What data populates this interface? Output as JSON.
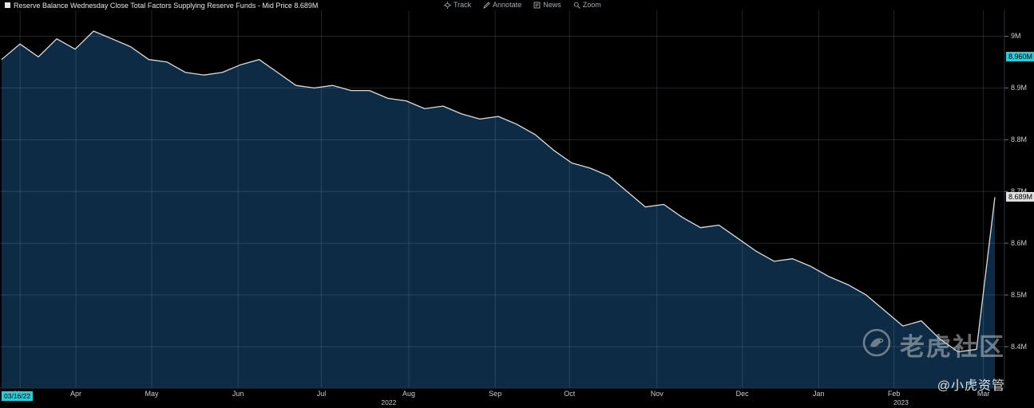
{
  "header": {
    "title": "Reserve Balance Wednesday Close Total Factors Supplying Reserve Funds - Mid Price 8.689M",
    "legend_color": "#e6e6e6",
    "toolbar": [
      {
        "label": "Track"
      },
      {
        "label": "Annotate"
      },
      {
        "label": "News"
      },
      {
        "label": "Zoom"
      }
    ]
  },
  "chart_data": {
    "type": "area",
    "title": "Reserve Balance Wednesday Close Total Factors Supplying Reserve Funds - Mid Price",
    "series_name": "Total Factors Supplying Reserve Funds - Mid Price",
    "frequency": "weekly Wednesday close",
    "x_range": [
      "Mar 2022",
      "Mar 2023"
    ],
    "value_suffix": "M",
    "values": [
      8.955,
      8.985,
      8.96,
      8.995,
      8.975,
      9.01,
      8.995,
      8.98,
      8.955,
      8.95,
      8.93,
      8.925,
      8.93,
      8.945,
      8.955,
      8.93,
      8.905,
      8.9,
      8.905,
      8.895,
      8.895,
      8.88,
      8.875,
      8.86,
      8.865,
      8.85,
      8.84,
      8.845,
      8.83,
      8.81,
      8.78,
      8.755,
      8.745,
      8.73,
      8.7,
      8.67,
      8.675,
      8.65,
      8.63,
      8.635,
      8.61,
      8.585,
      8.565,
      8.57,
      8.555,
      8.535,
      8.52,
      8.5,
      8.47,
      8.44,
      8.45,
      8.415,
      8.39,
      8.395,
      8.689
    ],
    "ylim": [
      8.32,
      9.05
    ],
    "grid": true,
    "legend_position": "top-left",
    "line_color": "#d8dde2",
    "fill_color": "#0e2b45",
    "grid_color": "rgba(150,165,180,0.22)",
    "y_ticks": [
      {
        "label": "9M",
        "value": 9.0
      },
      {
        "label": "8.9M",
        "value": 8.9
      },
      {
        "label": "8.8M",
        "value": 8.8
      },
      {
        "label": "8.7M",
        "value": 8.7
      },
      {
        "label": "8.6M",
        "value": 8.6
      },
      {
        "label": "8.5M",
        "value": 8.5
      },
      {
        "label": "8.4M",
        "value": 8.4
      }
    ],
    "x_ticks": [
      {
        "label": "Mar",
        "t": 0.02
      },
      {
        "label": "Apr",
        "t": 0.0755
      },
      {
        "label": "May",
        "t": 0.151
      },
      {
        "label": "Jun",
        "t": 0.237
      },
      {
        "label": "Jul",
        "t": 0.32
      },
      {
        "label": "Aug",
        "t": 0.407
      },
      {
        "label": "Sep",
        "t": 0.493
      },
      {
        "label": "Oct",
        "t": 0.567
      },
      {
        "label": "Nov",
        "t": 0.654
      },
      {
        "label": "Dec",
        "t": 0.739
      },
      {
        "label": "Jan",
        "t": 0.815
      },
      {
        "label": "Feb",
        "t": 0.89
      },
      {
        "label": "Mar",
        "t": 0.979
      }
    ],
    "year_labels": [
      {
        "label": "2022",
        "t": 0.387
      },
      {
        "label": "2023",
        "t": 0.897
      }
    ],
    "last_price": {
      "label": "8.689M",
      "value": 8.689,
      "bg": "#dfdfdf"
    },
    "track_price": {
      "label": "8.960M",
      "value": 8.96,
      "bg": "#2accd8"
    },
    "start_date": {
      "label": "03/16/22",
      "bg": "#2accd8"
    }
  },
  "watermark": {
    "brand": "老虎社区",
    "handle": "@小虎资管"
  }
}
